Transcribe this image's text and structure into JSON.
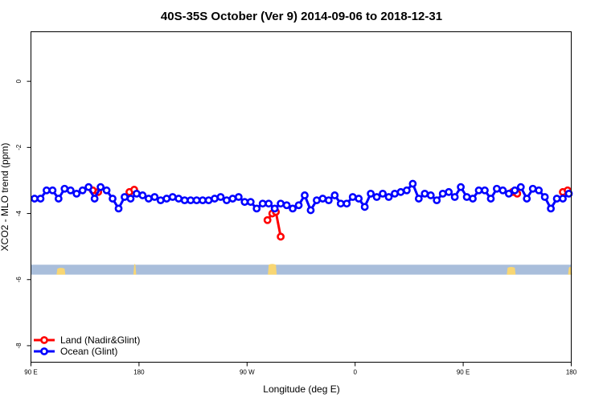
{
  "chart_data": {
    "type": "line",
    "title": "40S-35S October (Ver 9)   2014-09-06 to 2018-12-31",
    "xlabel": "Longitude (deg E)",
    "ylabel": "XCO2 - MLO trend (ppm)",
    "x_ticks": [
      {
        "value": 90,
        "label": "90 E"
      },
      {
        "value": 180,
        "label": "180"
      },
      {
        "value": 270,
        "label": "90 W"
      },
      {
        "value": 360,
        "label": "0"
      },
      {
        "value": 450,
        "label": "90 E"
      },
      {
        "value": 540,
        "label": "180"
      }
    ],
    "y_ticks": [
      0,
      -2,
      -4,
      -6,
      -8
    ],
    "xlim": [
      90,
      540
    ],
    "ylim": [
      -8.5,
      1.5
    ],
    "grid": false,
    "legend_position": "bottom-left",
    "map_strip": {
      "y_top": -5.55,
      "y_bottom": -5.85,
      "ocean_color": "#a9bedb",
      "land_color": "#f8d673"
    },
    "series": [
      {
        "name": "Land (Nadir&Glint)",
        "color": "#ff0000",
        "segments": [
          [
            [
              141.5,
              -3.3
            ],
            [
              146,
              -3.35
            ]
          ],
          [
            [
              172,
              -3.35
            ],
            [
              176,
              -3.28
            ]
          ],
          [
            [
              287,
              -4.2
            ],
            [
              291,
              -4.0
            ],
            [
              294,
              -3.95
            ],
            [
              298,
              -4.7
            ]
          ],
          [
            [
              491,
              -3.35
            ],
            [
              495,
              -3.4
            ]
          ],
          [
            [
              533,
              -3.35
            ],
            [
              537,
              -3.3
            ]
          ]
        ]
      },
      {
        "name": "Ocean (Glint)",
        "color": "#0000ff",
        "points": [
          [
            93,
            -3.55
          ],
          [
            98,
            -3.55
          ],
          [
            103,
            -3.3
          ],
          [
            108,
            -3.3
          ],
          [
            113,
            -3.55
          ],
          [
            118,
            -3.25
          ],
          [
            123,
            -3.3
          ],
          [
            128,
            -3.4
          ],
          [
            133,
            -3.3
          ],
          [
            138,
            -3.2
          ],
          [
            143,
            -3.55
          ],
          [
            148,
            -3.2
          ],
          [
            153,
            -3.3
          ],
          [
            158,
            -3.55
          ],
          [
            163,
            -3.85
          ],
          [
            168,
            -3.5
          ],
          [
            173,
            -3.55
          ],
          [
            178,
            -3.4
          ],
          [
            183,
            -3.45
          ],
          [
            188,
            -3.55
          ],
          [
            193,
            -3.5
          ],
          [
            198,
            -3.6
          ],
          [
            203,
            -3.55
          ],
          [
            208,
            -3.5
          ],
          [
            213,
            -3.55
          ],
          [
            218,
            -3.6
          ],
          [
            223,
            -3.6
          ],
          [
            228,
            -3.6
          ],
          [
            233,
            -3.6
          ],
          [
            238,
            -3.6
          ],
          [
            243,
            -3.55
          ],
          [
            248,
            -3.5
          ],
          [
            253,
            -3.6
          ],
          [
            258,
            -3.55
          ],
          [
            263,
            -3.5
          ],
          [
            268,
            -3.65
          ],
          [
            273,
            -3.65
          ],
          [
            278,
            -3.85
          ],
          [
            283,
            -3.7
          ],
          [
            288,
            -3.7
          ],
          [
            293,
            -3.85
          ],
          [
            298,
            -3.7
          ],
          [
            303,
            -3.75
          ],
          [
            308,
            -3.85
          ],
          [
            313,
            -3.75
          ],
          [
            318,
            -3.45
          ],
          [
            323,
            -3.9
          ],
          [
            328,
            -3.6
          ],
          [
            333,
            -3.55
          ],
          [
            338,
            -3.6
          ],
          [
            343,
            -3.45
          ],
          [
            348,
            -3.7
          ],
          [
            353,
            -3.7
          ],
          [
            358,
            -3.5
          ],
          [
            363,
            -3.55
          ],
          [
            368,
            -3.8
          ],
          [
            373,
            -3.4
          ],
          [
            378,
            -3.5
          ],
          [
            383,
            -3.4
          ],
          [
            388,
            -3.5
          ],
          [
            393,
            -3.4
          ],
          [
            398,
            -3.35
          ],
          [
            403,
            -3.3
          ],
          [
            408,
            -3.1
          ],
          [
            413,
            -3.55
          ],
          [
            418,
            -3.4
          ],
          [
            423,
            -3.45
          ],
          [
            428,
            -3.6
          ],
          [
            433,
            -3.4
          ],
          [
            438,
            -3.35
          ],
          [
            443,
            -3.5
          ],
          [
            448,
            -3.2
          ],
          [
            453,
            -3.5
          ],
          [
            458,
            -3.55
          ],
          [
            463,
            -3.3
          ],
          [
            468,
            -3.3
          ],
          [
            473,
            -3.55
          ],
          [
            478,
            -3.25
          ],
          [
            483,
            -3.3
          ],
          [
            488,
            -3.4
          ],
          [
            493,
            -3.3
          ],
          [
            498,
            -3.2
          ],
          [
            503,
            -3.55
          ],
          [
            508,
            -3.25
          ],
          [
            513,
            -3.3
          ],
          [
            518,
            -3.5
          ],
          [
            523,
            -3.85
          ],
          [
            528,
            -3.55
          ],
          [
            533,
            -3.55
          ],
          [
            538,
            -3.4
          ]
        ]
      }
    ]
  }
}
